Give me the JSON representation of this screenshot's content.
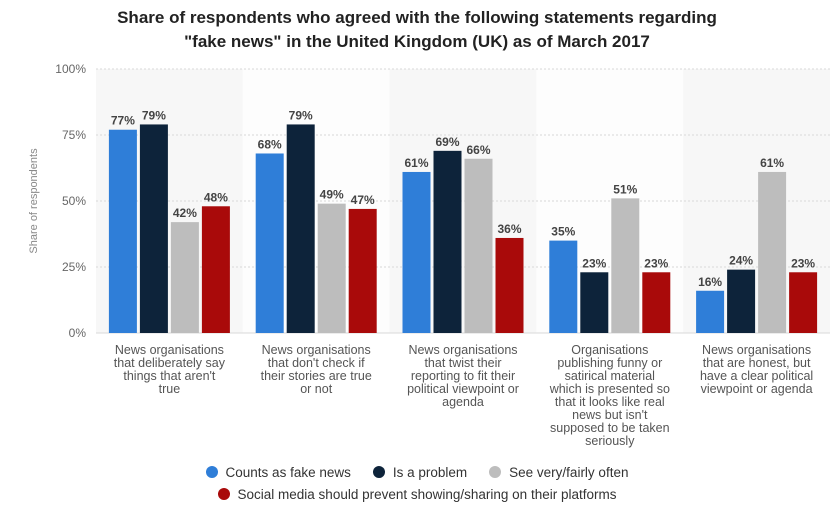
{
  "title_lines": [
    "Share of respondents who agreed with the following statements regarding",
    "\"fake news\" in the United Kingdom (UK) as of March 2017"
  ],
  "chart_data": {
    "type": "bar",
    "title": "Share of respondents who agreed with the following statements regarding \"fake news\" in the United Kingdom (UK) as of March 2017",
    "xlabel": "",
    "ylabel": "Share of respondents",
    "ylim": [
      0,
      100
    ],
    "yticks": [
      "0%",
      "25%",
      "50%",
      "75%",
      "100%"
    ],
    "ytick_values": [
      0,
      25,
      50,
      75,
      100
    ],
    "grid": true,
    "legend_position": "bottom",
    "categories": [
      [
        "News organisations",
        "that deliberately say",
        "things that aren't",
        "true"
      ],
      [
        "News organisations",
        "that don't check if",
        "their stories are true",
        "or not"
      ],
      [
        "News organisations",
        "that twist their",
        "reporting to fit their",
        "political viewpoint or",
        "agenda"
      ],
      [
        "Organisations",
        "publishing funny or",
        "satirical material",
        "which is presented so",
        "that it looks like real",
        "news but isn't",
        "supposed to be taken",
        "seriously"
      ],
      [
        "News organisations",
        "that are honest, but",
        "have a clear political",
        "viewpoint or agenda"
      ]
    ],
    "series": [
      {
        "name": "Counts as fake news",
        "color": "#2f7ed8",
        "values": [
          77,
          68,
          61,
          35,
          16
        ]
      },
      {
        "name": "Is a problem",
        "color": "#0d233a",
        "values": [
          79,
          79,
          69,
          23,
          24
        ]
      },
      {
        "name": "See very/fairly often",
        "color": "#bdbdbd",
        "values": [
          42,
          49,
          66,
          51,
          61
        ]
      },
      {
        "name": "Social media should prevent showing/sharing on their platforms",
        "color": "#a90a0a",
        "values": [
          48,
          47,
          36,
          23,
          23
        ]
      }
    ]
  }
}
